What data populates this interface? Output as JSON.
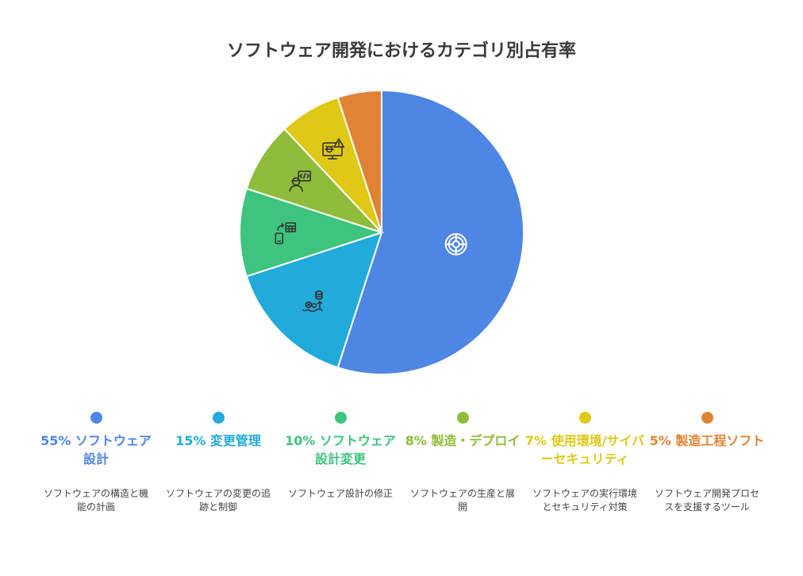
{
  "chart_data": {
    "type": "pie",
    "title": "ソフトウェア開発におけるカテゴリ別占有率",
    "slices": [
      {
        "value": 55,
        "pct_label": "55%",
        "name": "ソフトウェア設計",
        "desc": "ソフトウェアの構造と機能の計画",
        "color": "#4E86E4",
        "icon": "steering-wheel-icon"
      },
      {
        "value": 15,
        "pct_label": "15%",
        "name": "変更管理",
        "desc": "ソフトウェアの変更の追跡と制御",
        "color": "#22AADB",
        "icon": "gears-database-icon"
      },
      {
        "value": 10,
        "pct_label": "10%",
        "name": "ソフトウェア設計変更",
        "desc": "ソフトウェア設計の修正",
        "color": "#3DC47E",
        "icon": "mobile-calculator-icon"
      },
      {
        "value": 8,
        "pct_label": "8%",
        "name": "製造・デプロイ",
        "desc": "ソフトウェアの生産と展開",
        "color": "#8FBC3A",
        "icon": "developer-code-icon"
      },
      {
        "value": 7,
        "pct_label": "7%",
        "name": "使用環境/サイバーセキュリティ",
        "desc": "ソフトウェアの実行環境とセキュリティ対策",
        "color": "#E0C816",
        "icon": "monitor-bug-warning-icon"
      },
      {
        "value": 5,
        "pct_label": "5%",
        "name": "製造工程ソフト",
        "desc": "ソフトウェア開発プロセスを支援するツール",
        "color": "#E08434",
        "icon": ""
      }
    ]
  }
}
